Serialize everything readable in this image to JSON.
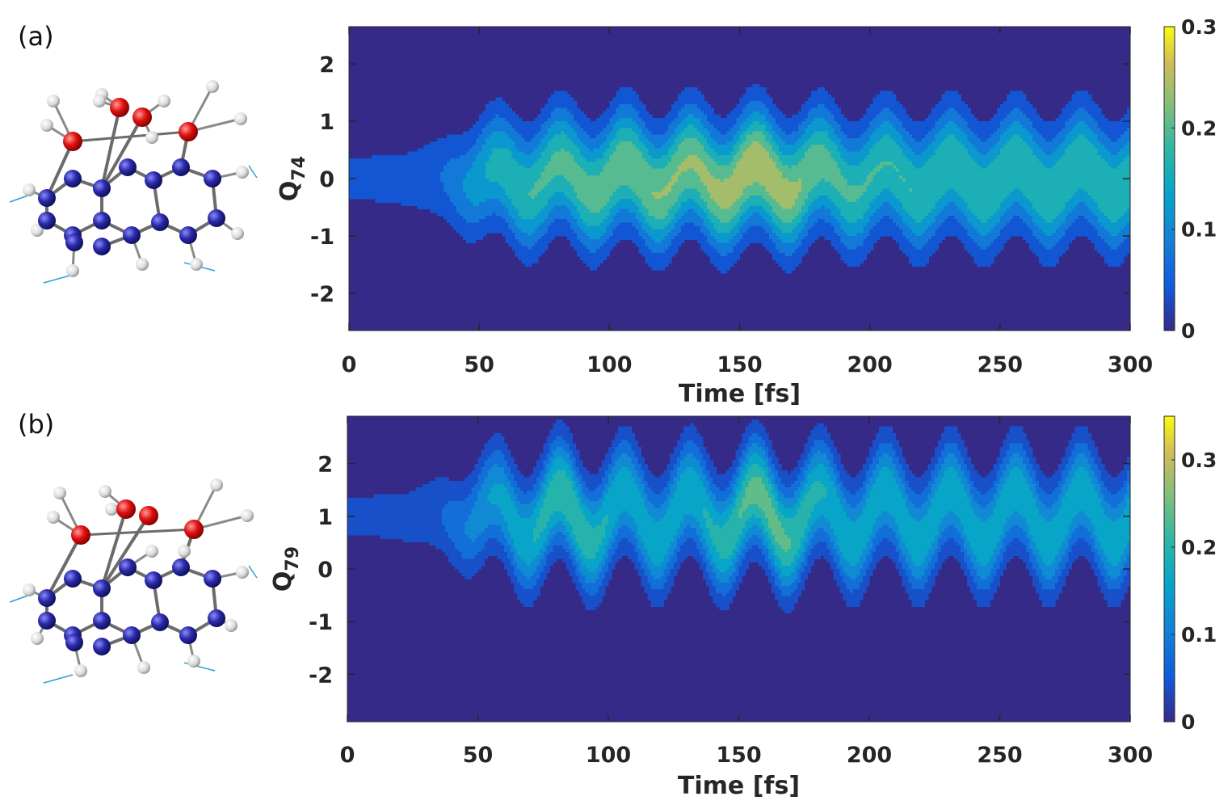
{
  "chart_data": [
    {
      "type": "heatmap",
      "panel_label": "(a)",
      "xlabel": "Time [fs]",
      "ylabel_main": "Q",
      "ylabel_sub": "74",
      "xlim": [
        0,
        300
      ],
      "ylim": [
        -2.65,
        2.65
      ],
      "xticks": [
        0,
        50,
        100,
        150,
        200,
        250,
        300
      ],
      "yticks": [
        -2,
        -1,
        0,
        1,
        2
      ],
      "colorbar": {
        "min": 0,
        "max": 0.3,
        "ticks": [
          "0",
          "0.1",
          "0.2",
          "0.3"
        ],
        "tick_values": [
          0,
          0.1,
          0.2,
          0.3
        ]
      },
      "contour_levels": [
        0.04,
        0.08,
        0.12,
        0.16,
        0.2,
        0.24,
        0.28
      ],
      "oscillation": {
        "period_fs": 25,
        "amplitude": 0.28,
        "width": 0.55
      },
      "peak_density": 0.3,
      "peak_time_fs": 160,
      "peak_q": 0.0
    },
    {
      "type": "heatmap",
      "panel_label": "(b)",
      "xlabel": "Time [fs]",
      "ylabel_main": "Q",
      "ylabel_sub": "79",
      "xlim": [
        0,
        300
      ],
      "ylim": [
        -2.9,
        2.9
      ],
      "xticks": [
        0,
        50,
        100,
        150,
        200,
        250,
        300
      ],
      "yticks": [
        -2,
        -1,
        0,
        1,
        2
      ],
      "colorbar": {
        "min": 0,
        "max": 0.35,
        "ticks": [
          "0",
          "0.1",
          "0.2",
          "0.3"
        ],
        "tick_values": [
          0,
          0.1,
          0.2,
          0.3
        ]
      },
      "contour_levels": [
        0.04,
        0.08,
        0.12,
        0.16,
        0.2,
        0.24,
        0.28
      ],
      "oscillation": {
        "period_fs": 25,
        "amplitude": 0.5,
        "width": 0.55
      },
      "center_q": 1.0,
      "peak_density": 0.28,
      "peak_time_fs": 160,
      "peak_q": 1.1
    }
  ],
  "colors": {
    "background_low": "#3a2c9c",
    "mid": "#20b2aa",
    "high": "#f9fb0e"
  }
}
